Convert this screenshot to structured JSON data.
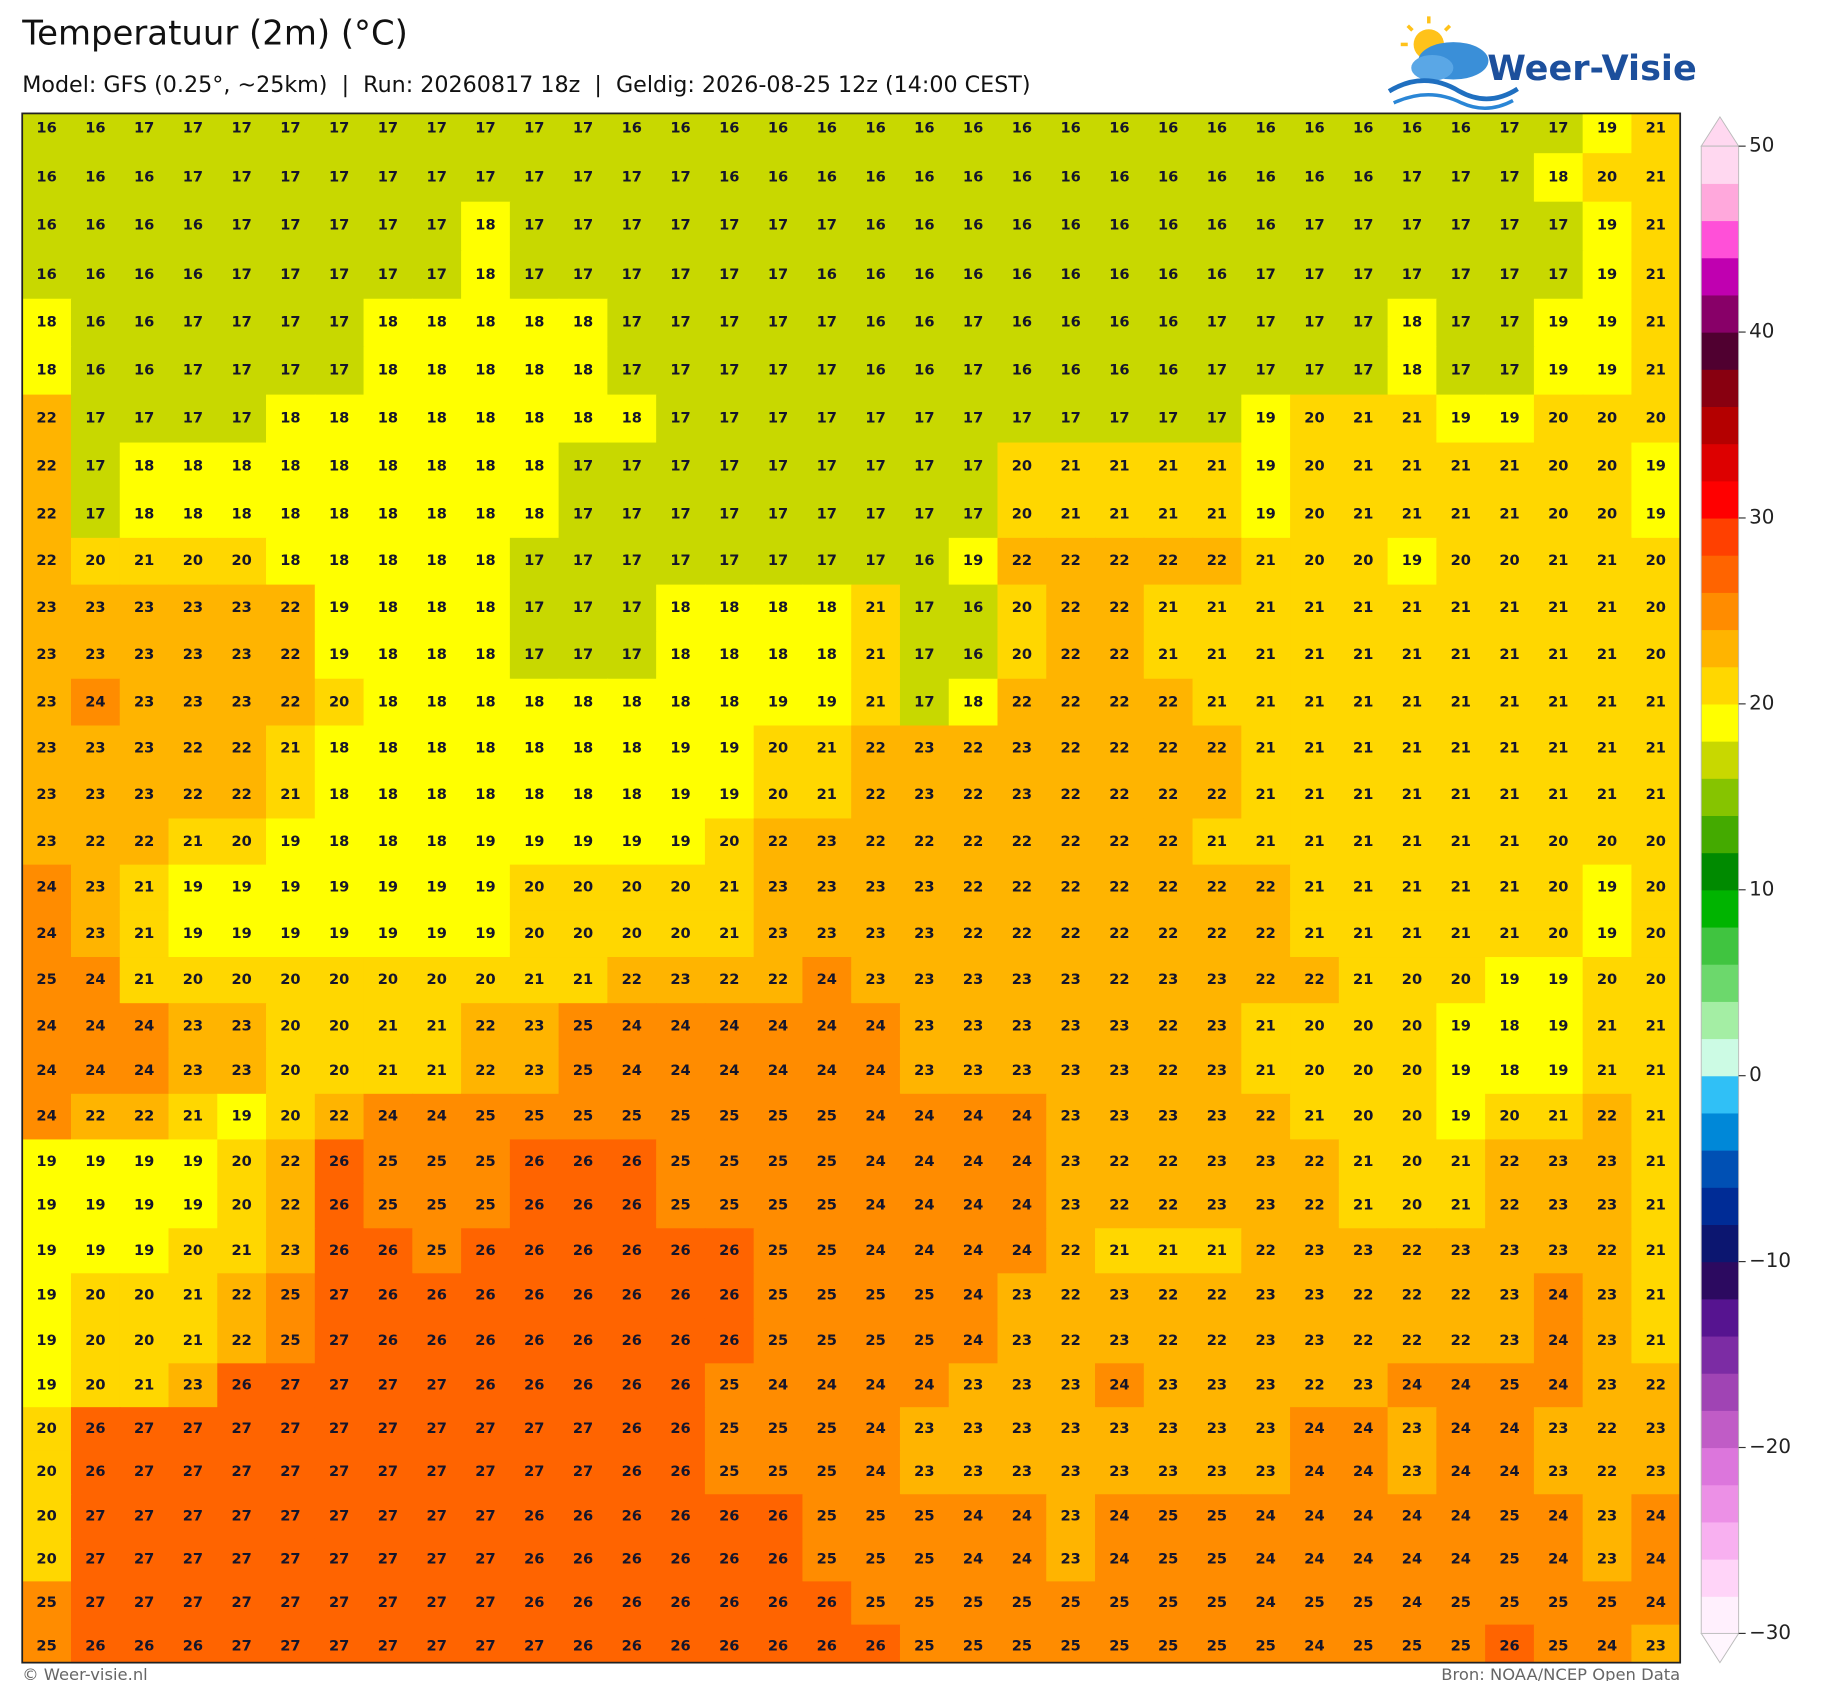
{
  "header": {
    "title": "Temperatuur (2m) (°C)",
    "subtitle": "Model: GFS (0.25°, ~25km)  |  Run: 20260817 18z  |  Geldig: 2026-08-25 12z (14:00 CEST)"
  },
  "logo": "Weer-Visie",
  "map": {
    "values": [
      [
        16,
        16,
        17,
        17,
        17,
        17,
        17,
        17,
        17,
        17,
        17,
        17,
        16,
        16,
        16,
        16,
        16,
        16,
        16,
        16,
        16,
        16,
        16,
        16,
        16,
        16,
        16,
        16,
        16,
        16,
        17,
        17,
        19,
        21
      ],
      [
        16,
        16,
        16,
        17,
        17,
        17,
        17,
        17,
        17,
        17,
        17,
        17,
        17,
        17,
        16,
        16,
        16,
        16,
        16,
        16,
        16,
        16,
        16,
        16,
        16,
        16,
        16,
        16,
        17,
        17,
        17,
        18,
        20,
        21
      ],
      [
        16,
        16,
        16,
        16,
        17,
        17,
        17,
        17,
        17,
        18,
        17,
        17,
        17,
        17,
        17,
        17,
        17,
        16,
        16,
        16,
        16,
        16,
        16,
        16,
        16,
        16,
        17,
        17,
        17,
        17,
        17,
        17,
        19,
        21
      ],
      [
        16,
        16,
        16,
        16,
        17,
        17,
        17,
        17,
        17,
        18,
        17,
        17,
        17,
        17,
        17,
        17,
        16,
        16,
        16,
        16,
        16,
        16,
        16,
        16,
        16,
        17,
        17,
        17,
        17,
        17,
        17,
        17,
        19,
        21
      ],
      [
        18,
        16,
        16,
        17,
        17,
        17,
        17,
        18,
        18,
        18,
        18,
        18,
        17,
        17,
        17,
        17,
        17,
        16,
        16,
        17,
        16,
        16,
        16,
        16,
        17,
        17,
        17,
        17,
        18,
        17,
        17,
        19,
        19,
        21
      ],
      [
        18,
        16,
        16,
        17,
        17,
        17,
        17,
        18,
        18,
        18,
        18,
        18,
        17,
        17,
        17,
        17,
        17,
        16,
        16,
        17,
        16,
        16,
        16,
        16,
        17,
        17,
        17,
        17,
        18,
        17,
        17,
        19,
        19,
        21
      ],
      [
        22,
        17,
        17,
        17,
        17,
        18,
        18,
        18,
        18,
        18,
        18,
        18,
        18,
        17,
        17,
        17,
        17,
        17,
        17,
        17,
        17,
        17,
        17,
        17,
        17,
        19,
        20,
        21,
        21,
        19,
        19,
        20,
        20,
        20
      ],
      [
        22,
        17,
        18,
        18,
        18,
        18,
        18,
        18,
        18,
        18,
        18,
        17,
        17,
        17,
        17,
        17,
        17,
        17,
        17,
        17,
        20,
        21,
        21,
        21,
        21,
        19,
        20,
        21,
        21,
        21,
        21,
        20,
        20,
        19
      ],
      [
        22,
        17,
        18,
        18,
        18,
        18,
        18,
        18,
        18,
        18,
        18,
        17,
        17,
        17,
        17,
        17,
        17,
        17,
        17,
        17,
        20,
        21,
        21,
        21,
        21,
        19,
        20,
        21,
        21,
        21,
        21,
        20,
        20,
        19
      ],
      [
        22,
        20,
        21,
        20,
        20,
        18,
        18,
        18,
        18,
        18,
        17,
        17,
        17,
        17,
        17,
        17,
        17,
        17,
        16,
        19,
        22,
        22,
        22,
        22,
        22,
        21,
        20,
        20,
        19,
        20,
        20,
        21,
        21,
        20
      ],
      [
        23,
        23,
        23,
        23,
        23,
        22,
        19,
        18,
        18,
        18,
        17,
        17,
        17,
        18,
        18,
        18,
        18,
        21,
        17,
        16,
        20,
        22,
        22,
        21,
        21,
        21,
        21,
        21,
        21,
        21,
        21,
        21,
        21,
        20
      ],
      [
        23,
        23,
        23,
        23,
        23,
        22,
        19,
        18,
        18,
        18,
        17,
        17,
        17,
        18,
        18,
        18,
        18,
        21,
        17,
        16,
        20,
        22,
        22,
        21,
        21,
        21,
        21,
        21,
        21,
        21,
        21,
        21,
        21,
        20
      ],
      [
        23,
        24,
        23,
        23,
        23,
        22,
        20,
        18,
        18,
        18,
        18,
        18,
        18,
        18,
        18,
        19,
        19,
        21,
        17,
        18,
        22,
        22,
        22,
        22,
        21,
        21,
        21,
        21,
        21,
        21,
        21,
        21,
        21,
        21
      ],
      [
        23,
        23,
        23,
        22,
        22,
        21,
        18,
        18,
        18,
        18,
        18,
        18,
        18,
        19,
        19,
        20,
        21,
        22,
        23,
        22,
        23,
        22,
        22,
        22,
        22,
        21,
        21,
        21,
        21,
        21,
        21,
        21,
        21,
        21
      ],
      [
        23,
        23,
        23,
        22,
        22,
        21,
        18,
        18,
        18,
        18,
        18,
        18,
        18,
        19,
        19,
        20,
        21,
        22,
        23,
        22,
        23,
        22,
        22,
        22,
        22,
        21,
        21,
        21,
        21,
        21,
        21,
        21,
        21,
        21
      ],
      [
        23,
        22,
        22,
        21,
        20,
        19,
        18,
        18,
        18,
        19,
        19,
        19,
        19,
        19,
        20,
        22,
        23,
        22,
        22,
        22,
        22,
        22,
        22,
        22,
        21,
        21,
        21,
        21,
        21,
        21,
        21,
        20,
        20,
        20
      ],
      [
        24,
        23,
        21,
        19,
        19,
        19,
        19,
        19,
        19,
        19,
        20,
        20,
        20,
        20,
        21,
        23,
        23,
        23,
        23,
        22,
        22,
        22,
        22,
        22,
        22,
        22,
        21,
        21,
        21,
        21,
        21,
        20,
        19,
        20
      ],
      [
        24,
        23,
        21,
        19,
        19,
        19,
        19,
        19,
        19,
        19,
        20,
        20,
        20,
        20,
        21,
        23,
        23,
        23,
        23,
        22,
        22,
        22,
        22,
        22,
        22,
        22,
        21,
        21,
        21,
        21,
        21,
        20,
        19,
        20
      ],
      [
        25,
        24,
        21,
        20,
        20,
        20,
        20,
        20,
        20,
        20,
        21,
        21,
        22,
        23,
        22,
        22,
        24,
        23,
        23,
        23,
        23,
        23,
        22,
        23,
        23,
        22,
        22,
        21,
        20,
        20,
        19,
        19,
        20,
        20
      ],
      [
        24,
        24,
        24,
        23,
        23,
        20,
        20,
        21,
        21,
        22,
        23,
        25,
        24,
        24,
        24,
        24,
        24,
        24,
        23,
        23,
        23,
        23,
        23,
        22,
        23,
        21,
        20,
        20,
        20,
        19,
        18,
        19,
        21,
        21
      ],
      [
        24,
        24,
        24,
        23,
        23,
        20,
        20,
        21,
        21,
        22,
        23,
        25,
        24,
        24,
        24,
        24,
        24,
        24,
        23,
        23,
        23,
        23,
        23,
        22,
        23,
        21,
        20,
        20,
        20,
        19,
        18,
        19,
        21,
        21
      ],
      [
        24,
        22,
        22,
        21,
        19,
        20,
        22,
        24,
        24,
        25,
        25,
        25,
        25,
        25,
        25,
        25,
        25,
        24,
        24,
        24,
        24,
        23,
        23,
        23,
        23,
        22,
        21,
        20,
        20,
        19,
        20,
        21,
        22,
        21
      ],
      [
        19,
        19,
        19,
        19,
        20,
        22,
        26,
        25,
        25,
        25,
        26,
        26,
        26,
        25,
        25,
        25,
        25,
        24,
        24,
        24,
        24,
        23,
        22,
        22,
        23,
        23,
        22,
        21,
        20,
        21,
        22,
        23,
        23,
        21
      ],
      [
        19,
        19,
        19,
        19,
        20,
        22,
        26,
        25,
        25,
        25,
        26,
        26,
        26,
        25,
        25,
        25,
        25,
        24,
        24,
        24,
        24,
        23,
        22,
        22,
        23,
        23,
        22,
        21,
        20,
        21,
        22,
        23,
        23,
        21
      ],
      [
        19,
        19,
        19,
        20,
        21,
        23,
        26,
        26,
        25,
        26,
        26,
        26,
        26,
        26,
        26,
        25,
        25,
        24,
        24,
        24,
        24,
        22,
        21,
        21,
        21,
        22,
        23,
        23,
        22,
        23,
        23,
        23,
        22,
        21
      ],
      [
        19,
        20,
        20,
        21,
        22,
        25,
        27,
        26,
        26,
        26,
        26,
        26,
        26,
        26,
        26,
        25,
        25,
        25,
        25,
        24,
        23,
        22,
        23,
        22,
        22,
        23,
        23,
        22,
        22,
        22,
        23,
        24,
        23,
        21
      ],
      [
        19,
        20,
        20,
        21,
        22,
        25,
        27,
        26,
        26,
        26,
        26,
        26,
        26,
        26,
        26,
        25,
        25,
        25,
        25,
        24,
        23,
        22,
        23,
        22,
        22,
        23,
        23,
        22,
        22,
        22,
        23,
        24,
        23,
        21
      ],
      [
        19,
        20,
        21,
        23,
        26,
        27,
        27,
        27,
        27,
        26,
        26,
        26,
        26,
        26,
        25,
        24,
        24,
        24,
        24,
        23,
        23,
        23,
        24,
        23,
        23,
        23,
        22,
        23,
        24,
        24,
        25,
        24,
        23,
        22
      ],
      [
        20,
        26,
        27,
        27,
        27,
        27,
        27,
        27,
        27,
        27,
        27,
        27,
        26,
        26,
        25,
        25,
        25,
        24,
        23,
        23,
        23,
        23,
        23,
        23,
        23,
        23,
        24,
        24,
        23,
        24,
        24,
        23,
        22,
        23
      ],
      [
        20,
        26,
        27,
        27,
        27,
        27,
        27,
        27,
        27,
        27,
        27,
        27,
        26,
        26,
        25,
        25,
        25,
        24,
        23,
        23,
        23,
        23,
        23,
        23,
        23,
        23,
        24,
        24,
        23,
        24,
        24,
        23,
        22,
        23
      ],
      [
        20,
        27,
        27,
        27,
        27,
        27,
        27,
        27,
        27,
        27,
        26,
        26,
        26,
        26,
        26,
        26,
        25,
        25,
        25,
        24,
        24,
        23,
        24,
        25,
        25,
        24,
        24,
        24,
        24,
        24,
        25,
        24,
        23,
        24
      ],
      [
        20,
        27,
        27,
        27,
        27,
        27,
        27,
        27,
        27,
        27,
        26,
        26,
        26,
        26,
        26,
        26,
        25,
        25,
        25,
        24,
        24,
        23,
        24,
        25,
        25,
        24,
        24,
        24,
        24,
        24,
        25,
        24,
        23,
        24
      ],
      [
        25,
        27,
        27,
        27,
        27,
        27,
        27,
        27,
        27,
        27,
        26,
        26,
        26,
        26,
        26,
        26,
        26,
        25,
        25,
        25,
        25,
        25,
        25,
        25,
        25,
        24,
        25,
        25,
        24,
        25,
        25,
        25,
        25,
        24
      ],
      [
        25,
        26,
        26,
        26,
        27,
        27,
        27,
        27,
        27,
        27,
        27,
        26,
        26,
        26,
        26,
        26,
        26,
        26,
        25,
        25,
        25,
        25,
        25,
        25,
        25,
        25,
        24,
        25,
        25,
        25,
        26,
        25,
        24,
        23
      ]
    ]
  },
  "colorbar": {
    "lim": [
      -30,
      50
    ],
    "ticks": [
      {
        "value": -30,
        "label": "−30"
      },
      {
        "value": -20,
        "label": "−20"
      },
      {
        "value": -10,
        "label": "−10"
      },
      0,
      10,
      20,
      30,
      40,
      50
    ],
    "colors": [
      "#fff0fd",
      "#ffd4f8",
      "#f8b0f0",
      "#ec90e6",
      "#dc76dc",
      "#c05cc6",
      "#a044b4",
      "#7c2ca4",
      "#561490",
      "#2c0a60",
      "#0c1670",
      "#002c96",
      "#0050b4",
      "#0088d8",
      "#30c0f6",
      "#ccfbe4",
      "#a4eea4",
      "#6cd86c",
      "#40c440",
      "#00b400",
      "#008a00",
      "#44aa00",
      "#86c400",
      "#c8d800",
      "#ffff00",
      "#ffd700",
      "#ffb400",
      "#ff8c00",
      "#ff6400",
      "#ff4000",
      "#ff0000",
      "#dd0000",
      "#b40000",
      "#880010",
      "#500030",
      "#880068",
      "#c000b0",
      "#ff50d8",
      "#ffa8dc",
      "#ffd8f0"
    ]
  },
  "footer": {
    "left": "© Weer-visie.nl",
    "right": "Bron: NOAA/NCEP Open Data"
  }
}
